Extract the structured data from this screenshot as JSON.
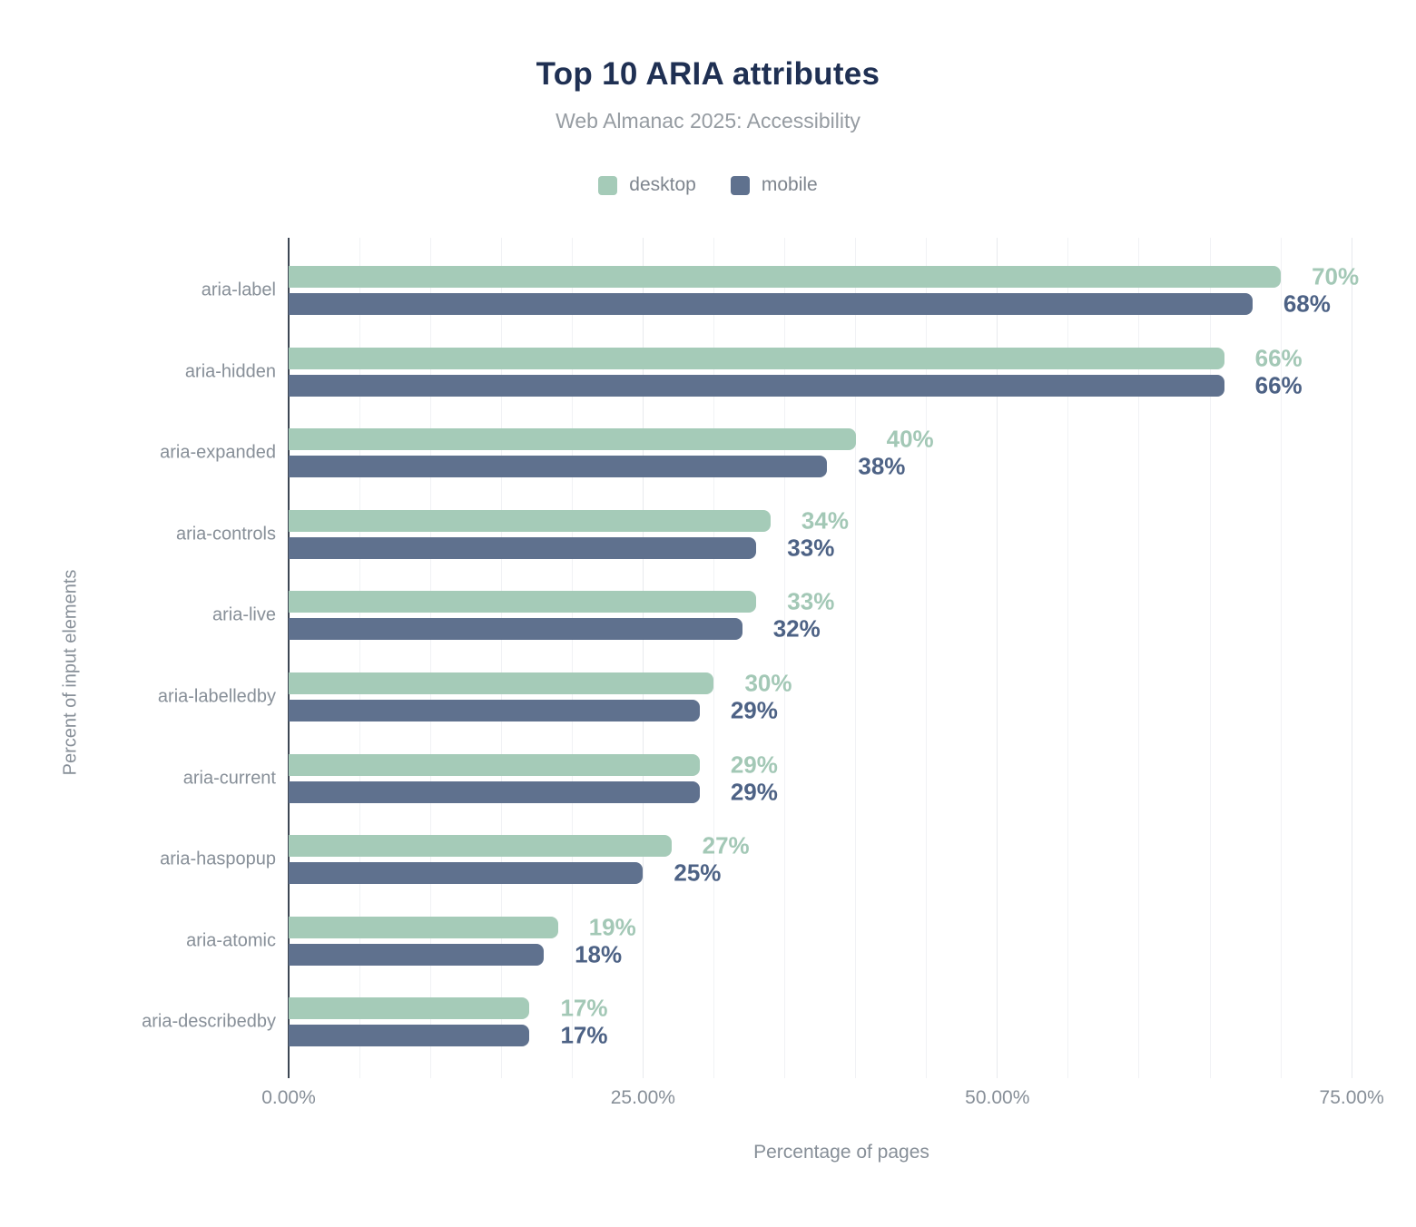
{
  "chart_data": {
    "type": "bar",
    "orientation": "horizontal",
    "title": "Top 10 ARIA attributes",
    "subtitle": "Web Almanac 2025: Accessibility",
    "categories": [
      "aria-label",
      "aria-hidden",
      "aria-expanded",
      "aria-controls",
      "aria-live",
      "aria-labelledby",
      "aria-current",
      "aria-haspopup",
      "aria-atomic",
      "aria-describedby"
    ],
    "series": [
      {
        "name": "desktop",
        "color": "#a5cbb8",
        "label_color": "#a3c8b6",
        "values": [
          70,
          66,
          40,
          34,
          33,
          30,
          29,
          27,
          19,
          17
        ]
      },
      {
        "name": "mobile",
        "color": "#5f718e",
        "label_color": "#4d6285",
        "values": [
          68,
          66,
          38,
          33,
          32,
          29,
          29,
          25,
          18,
          17
        ]
      }
    ],
    "value_suffix": "%",
    "xlabel": "Percentage of pages",
    "ylabel": "Percent of input elements",
    "x_ticks": [
      {
        "label": "0.00%",
        "value": 0
      },
      {
        "label": "25.00%",
        "value": 25
      },
      {
        "label": "50.00%",
        "value": 50
      },
      {
        "label": "75.00%",
        "value": 75
      }
    ],
    "xlim": [
      0,
      78
    ],
    "grid": {
      "minor_step": 5,
      "major_step": 25,
      "direction": "vertical"
    },
    "legend_position": "top"
  }
}
